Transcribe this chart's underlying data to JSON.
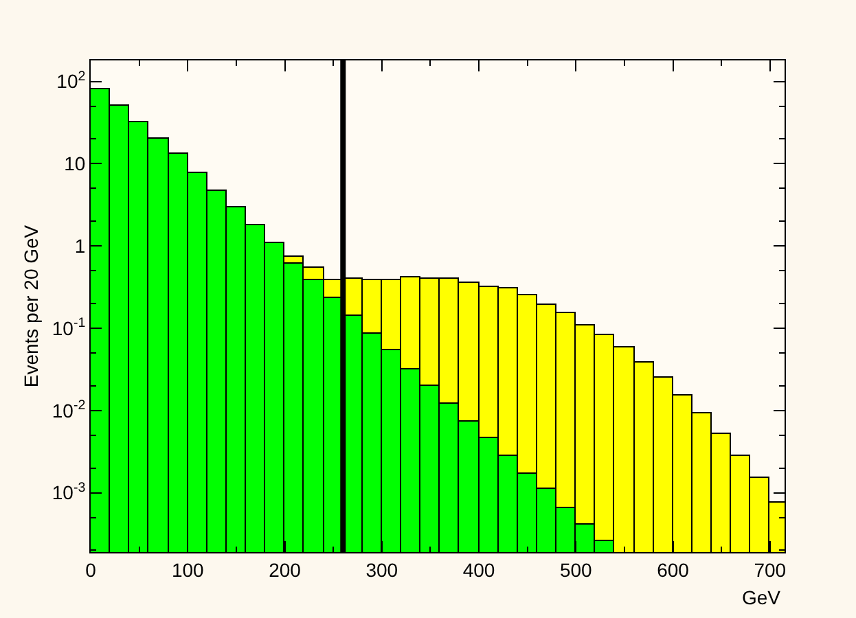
{
  "chart_data": {
    "type": "histogram",
    "xlabel": "GeV",
    "ylabel": "Events per 20 GeV",
    "bins": [
      0,
      20,
      40,
      60,
      80,
      100,
      120,
      140,
      160,
      180,
      200,
      220,
      240,
      260,
      280,
      300,
      320,
      340,
      360,
      380,
      400,
      420,
      440,
      460,
      480,
      500,
      520,
      540,
      560,
      580,
      600,
      620,
      640,
      660,
      680,
      700,
      720
    ],
    "series": [
      {
        "color": "#ffff00",
        "values": [
          null,
          null,
          null,
          null,
          null,
          null,
          null,
          null,
          null,
          null,
          0.74,
          0.55,
          0.38,
          0.4,
          0.39,
          0.39,
          0.41,
          0.4,
          0.4,
          0.36,
          0.32,
          0.3,
          0.25,
          0.19,
          0.15,
          0.11,
          0.083,
          0.058,
          0.038,
          0.025,
          0.015,
          0.0091,
          0.0051,
          0.0028,
          0.0015,
          0.00076
        ]
      },
      {
        "color": "#00ff00",
        "values": [
          81,
          51,
          32,
          20,
          13,
          7.6,
          4.6,
          2.9,
          1.8,
          1.1,
          0.62,
          0.38,
          0.23,
          0.14,
          0.085,
          0.054,
          0.032,
          0.02,
          0.012,
          0.0074,
          0.0046,
          0.0028,
          0.0017,
          0.0011,
          0.00066,
          0.00041,
          0.00026,
          null,
          null,
          null,
          null,
          null,
          null,
          null,
          null,
          null
        ]
      }
    ],
    "log": "y",
    "xlim": [
      0,
      715
    ],
    "xticks": [
      0,
      100,
      200,
      300,
      400,
      500,
      600,
      700
    ],
    "ylim": [
      0.00019,
      180
    ],
    "yticks": [
      {
        "value": 0.001,
        "label": "10$^{-3}$"
      },
      {
        "value": 0.01,
        "label": "10$^{-2}$"
      },
      {
        "value": 0.1,
        "label": "10$^{-1}$"
      },
      1,
      10,
      {
        "value": 100,
        "label": "10$^{2}$"
      }
    ],
    "ref_lines": [
      {
        "axis": "x",
        "value": 260,
        "color": "#000000",
        "line_style": "solid"
      }
    ],
    "grid": false
  }
}
